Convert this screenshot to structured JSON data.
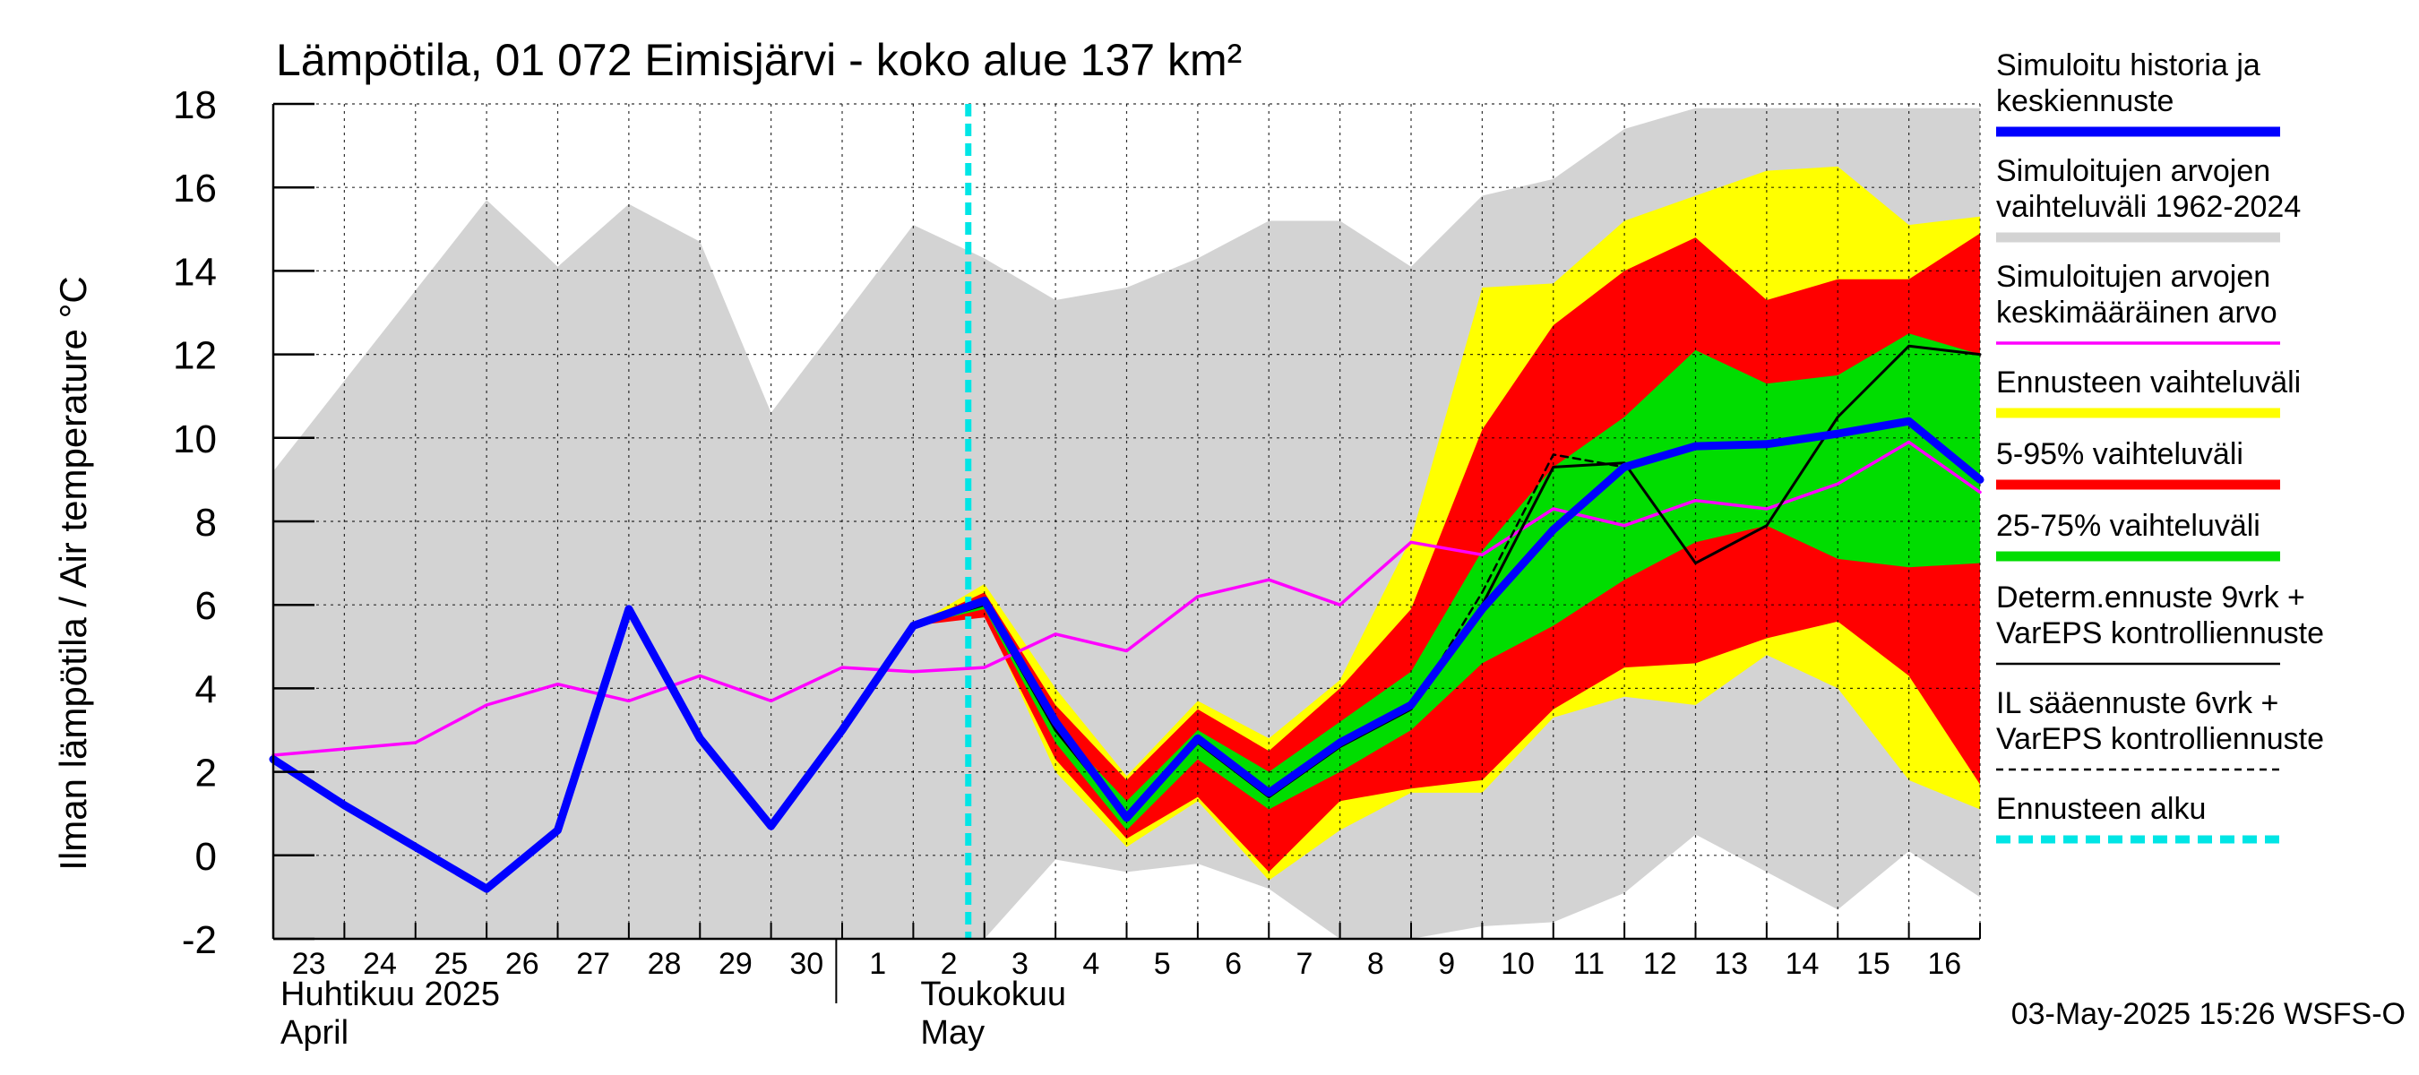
{
  "chart_data": {
    "type": "line",
    "title": "Lämpötila, 01 072 Eimisjärvi - koko alue 137 km²",
    "ylabel": "Ilman lämpötila / Air temperature   °C",
    "ylim": [
      -2,
      18
    ],
    "yticks": [
      -2,
      0,
      2,
      4,
      6,
      8,
      10,
      12,
      14,
      16,
      18
    ],
    "x_dates": [
      "2025-04-23",
      "2025-04-24",
      "2025-04-25",
      "2025-04-26",
      "2025-04-27",
      "2025-04-28",
      "2025-04-29",
      "2025-04-30",
      "2025-05-01",
      "2025-05-02",
      "2025-05-03",
      "2025-05-04",
      "2025-05-05",
      "2025-05-06",
      "2025-05-07",
      "2025-05-08",
      "2025-05-09",
      "2025-05-10",
      "2025-05-11",
      "2025-05-12",
      "2025-05-13",
      "2025-05-14",
      "2025-05-15",
      "2025-05-16",
      "2025-05-17"
    ],
    "xlim": [
      "2025-04-23",
      "2025-05-17"
    ],
    "day_labels": [
      "23",
      "24",
      "25",
      "26",
      "27",
      "28",
      "29",
      "30",
      "1",
      "2",
      "3",
      "4",
      "5",
      "6",
      "7",
      "8",
      "9",
      "10",
      "11",
      "12",
      "13",
      "14",
      "15",
      "16"
    ],
    "month_labels": [
      {
        "date": "2025-04-23",
        "line1": "Huhtikuu  2025",
        "line2": "April"
      },
      {
        "date": "2025-05-02",
        "line1": "Toukokuu",
        "line2": "May"
      }
    ],
    "forecast_start": "2025-05-03",
    "grid": true,
    "legend_position": "right",
    "timestamp": "03-May-2025 15:26 WSFS-O",
    "legend": [
      {
        "label_lines": [
          "Simuloitu historia ja",
          "keskiennuste"
        ],
        "color": "#0000ff",
        "style": "thick"
      },
      {
        "label_lines": [
          "Simuloitujen arvojen",
          "vaihteluväli 1962-2024"
        ],
        "color": "#d3d3d3",
        "style": "thick"
      },
      {
        "label_lines": [
          "Simuloitujen arvojen",
          "keskimääräinen arvo"
        ],
        "color": "#ff00ff",
        "style": "thin"
      },
      {
        "label_lines": [
          "Ennusteen vaihteluväli"
        ],
        "color": "#ffff00",
        "style": "thick"
      },
      {
        "label_lines": [
          "5-95% vaihteluväli"
        ],
        "color": "#ff0000",
        "style": "thick"
      },
      {
        "label_lines": [
          "25-75% vaihteluväli"
        ],
        "color": "#00dd00",
        "style": "thick"
      },
      {
        "label_lines": [
          "Determ.ennuste 9vrk +",
          "VarEPS kontrolliennuste"
        ],
        "color": "#000000",
        "style": "thinsolid"
      },
      {
        "label_lines": [
          "IL sääennuste 6vrk  +",
          "  VarEPS kontrolliennuste"
        ],
        "color": "#000000",
        "style": "dashed"
      },
      {
        "label_lines": [
          "Ennusteen alku"
        ],
        "color": "#00e5e5",
        "style": "thickdashed"
      }
    ],
    "series": {
      "historical_range": {
        "x": [
          "2025-04-23",
          "2025-04-26",
          "2025-04-27",
          "2025-04-28",
          "2025-04-29",
          "2025-04-30",
          "2025-05-02",
          "2025-05-03",
          "2025-05-04",
          "2025-05-05",
          "2025-05-06",
          "2025-05-07",
          "2025-05-08",
          "2025-05-09",
          "2025-05-10",
          "2025-05-11",
          "2025-05-12",
          "2025-05-13",
          "2025-05-14",
          "2025-05-15",
          "2025-05-16",
          "2025-05-17"
        ],
        "upper": [
          9.2,
          15.7,
          14.1,
          15.6,
          14.7,
          10.6,
          15.1,
          14.3,
          13.3,
          13.6,
          14.3,
          15.2,
          15.2,
          14.1,
          15.8,
          16.2,
          17.4,
          17.9,
          17.9,
          17.9,
          17.9,
          17.9
        ],
        "lower": [
          -2,
          -2,
          -2,
          -2,
          -2,
          -2,
          -2,
          -2,
          -0.1,
          -0.4,
          -0.2,
          -0.8,
          -2.2,
          -2.0,
          -1.7,
          -1.6,
          -0.9,
          0.5,
          -0.4,
          -1.3,
          0.1,
          -1.0
        ]
      },
      "forecast_range": {
        "x": [
          "2025-05-02",
          "2025-05-03",
          "2025-05-04",
          "2025-05-05",
          "2025-05-06",
          "2025-05-07",
          "2025-05-08",
          "2025-05-09",
          "2025-05-10",
          "2025-05-11",
          "2025-05-12",
          "2025-05-13",
          "2025-05-14",
          "2025-05-15",
          "2025-05-16",
          "2025-05-17"
        ],
        "upper": [
          5.5,
          6.5,
          4.0,
          1.9,
          3.7,
          2.8,
          4.2,
          7.6,
          13.6,
          13.7,
          15.2,
          15.8,
          16.4,
          16.5,
          15.1,
          15.3
        ],
        "lower": [
          5.5,
          5.8,
          2.0,
          0.2,
          1.3,
          -0.6,
          0.6,
          1.5,
          1.5,
          3.3,
          3.8,
          3.6,
          4.8,
          4.0,
          1.8,
          1.1
        ]
      },
      "range_5_95": {
        "x": [
          "2025-05-02",
          "2025-05-03",
          "2025-05-04",
          "2025-05-05",
          "2025-05-06",
          "2025-05-07",
          "2025-05-08",
          "2025-05-09",
          "2025-05-10",
          "2025-05-11",
          "2025-05-12",
          "2025-05-13",
          "2025-05-14",
          "2025-05-15",
          "2025-05-16",
          "2025-05-17"
        ],
        "upper": [
          5.5,
          6.3,
          3.6,
          1.8,
          3.5,
          2.5,
          4.0,
          5.9,
          10.2,
          12.7,
          14.0,
          14.8,
          13.3,
          13.8,
          13.8,
          14.9
        ],
        "lower": [
          5.5,
          5.7,
          2.3,
          0.4,
          1.4,
          -0.4,
          1.3,
          1.6,
          1.8,
          3.5,
          4.5,
          4.6,
          5.2,
          5.6,
          4.3,
          1.7
        ]
      },
      "range_25_75": {
        "x": [
          "2025-05-02",
          "2025-05-03",
          "2025-05-04",
          "2025-05-05",
          "2025-05-06",
          "2025-05-07",
          "2025-05-08",
          "2025-05-09",
          "2025-05-10",
          "2025-05-11",
          "2025-05-12",
          "2025-05-13",
          "2025-05-14",
          "2025-05-15",
          "2025-05-16",
          "2025-05-17"
        ],
        "upper": [
          5.5,
          6.2,
          3.1,
          1.3,
          3.0,
          2.0,
          3.2,
          4.4,
          7.3,
          9.3,
          10.5,
          12.1,
          11.3,
          11.5,
          12.5,
          12.0
        ],
        "lower": [
          5.5,
          5.9,
          2.7,
          0.6,
          2.3,
          1.1,
          2.0,
          3.0,
          4.6,
          5.5,
          6.6,
          7.5,
          7.9,
          7.1,
          6.9,
          7.0
        ]
      },
      "mean_history": {
        "x": [
          "2025-04-23",
          "2025-04-25",
          "2025-04-26",
          "2025-04-27",
          "2025-04-28",
          "2025-04-29",
          "2025-04-30",
          "2025-05-01",
          "2025-05-02",
          "2025-05-03",
          "2025-05-04",
          "2025-05-05",
          "2025-05-06",
          "2025-05-07",
          "2025-05-08",
          "2025-05-09",
          "2025-05-10",
          "2025-05-11",
          "2025-05-12",
          "2025-05-13",
          "2025-05-14",
          "2025-05-15",
          "2025-05-16",
          "2025-05-17"
        ],
        "y": [
          2.4,
          2.7,
          3.6,
          4.1,
          3.7,
          4.3,
          3.7,
          4.5,
          4.4,
          4.5,
          5.3,
          4.9,
          6.2,
          6.6,
          6.0,
          7.5,
          7.2,
          8.3,
          7.9,
          8.5,
          8.3,
          8.9,
          9.9,
          8.7
        ]
      },
      "simulated_mean": {
        "x": [
          "2025-04-23",
          "2025-04-24",
          "2025-04-25",
          "2025-04-26",
          "2025-04-27",
          "2025-04-28",
          "2025-04-29",
          "2025-04-30",
          "2025-05-01",
          "2025-05-02",
          "2025-05-03",
          "2025-05-04",
          "2025-05-05",
          "2025-05-06",
          "2025-05-07",
          "2025-05-08",
          "2025-05-09",
          "2025-05-10",
          "2025-05-11",
          "2025-05-12",
          "2025-05-13",
          "2025-05-14",
          "2025-05-15",
          "2025-05-16",
          "2025-05-17"
        ],
        "y": [
          2.3,
          1.2,
          0.2,
          -0.8,
          0.6,
          5.9,
          2.8,
          0.7,
          3.0,
          5.5,
          6.1,
          3.2,
          0.9,
          2.8,
          1.5,
          2.7,
          3.6,
          5.9,
          7.8,
          9.3,
          9.8,
          9.85,
          10.1,
          10.4,
          9.0
        ]
      },
      "deterministic": {
        "x": [
          "2025-05-02",
          "2025-05-03",
          "2025-05-04",
          "2025-05-05",
          "2025-05-06",
          "2025-05-07",
          "2025-05-08",
          "2025-05-09",
          "2025-05-10",
          "2025-05-11",
          "2025-05-12",
          "2025-05-13",
          "2025-05-14",
          "2025-05-15",
          "2025-05-16",
          "2025-05-17"
        ],
        "y": [
          5.5,
          6.0,
          3.0,
          0.9,
          2.7,
          1.4,
          2.6,
          3.5,
          6.0,
          9.3,
          9.4,
          7.0,
          7.9,
          10.5,
          12.2,
          12.0
        ]
      },
      "il_forecast": {
        "x": [
          "2025-05-02",
          "2025-05-03",
          "2025-05-04",
          "2025-05-05",
          "2025-05-06",
          "2025-05-07",
          "2025-05-08",
          "2025-05-09",
          "2025-05-10",
          "2025-05-11",
          "2025-05-12"
        ],
        "y": [
          5.5,
          6.0,
          3.0,
          0.9,
          2.7,
          1.4,
          2.6,
          3.5,
          6.3,
          9.6,
          9.3
        ]
      }
    }
  }
}
